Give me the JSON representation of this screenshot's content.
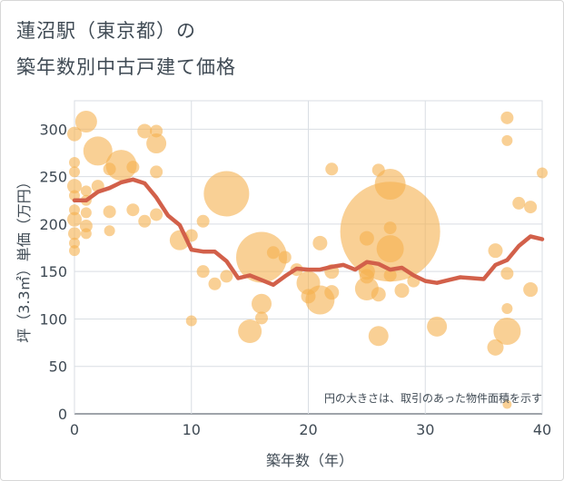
{
  "title_line1": "蓮沼駅（東京都）の",
  "title_line2": "築年数別中古戸建て価格",
  "chart_data": {
    "type": "scatter",
    "title": "蓮沼駅（東京都）の築年数別中古戸建て価格",
    "xlabel": "築年数（年）",
    "ylabel": "坪（3.3㎡）単価（万円）",
    "xlim": [
      0,
      40
    ],
    "ylim": [
      0,
      330
    ],
    "xticks": [
      0,
      10,
      20,
      30,
      40
    ],
    "yticks": [
      0,
      50,
      100,
      150,
      200,
      250,
      300
    ],
    "grid": true,
    "annotation": "円の大きさは、取引のあった物件面積を示す",
    "bubble_color": "#f5b04f",
    "line_color": "#d2604a",
    "bubbles": [
      {
        "x": 0,
        "y": 295,
        "r": 8
      },
      {
        "x": 0,
        "y": 265,
        "r": 6
      },
      {
        "x": 0,
        "y": 255,
        "r": 6
      },
      {
        "x": 0,
        "y": 240,
        "r": 8
      },
      {
        "x": 0,
        "y": 230,
        "r": 6
      },
      {
        "x": 0,
        "y": 215,
        "r": 6
      },
      {
        "x": 0,
        "y": 205,
        "r": 8
      },
      {
        "x": 0,
        "y": 190,
        "r": 7
      },
      {
        "x": 0,
        "y": 180,
        "r": 6
      },
      {
        "x": 0,
        "y": 172,
        "r": 6
      },
      {
        "x": 1,
        "y": 308,
        "r": 12
      },
      {
        "x": 1,
        "y": 235,
        "r": 6
      },
      {
        "x": 1,
        "y": 225,
        "r": 6
      },
      {
        "x": 1,
        "y": 212,
        "r": 6
      },
      {
        "x": 1,
        "y": 198,
        "r": 7
      },
      {
        "x": 1,
        "y": 190,
        "r": 6
      },
      {
        "x": 2,
        "y": 277,
        "r": 16
      },
      {
        "x": 2,
        "y": 240,
        "r": 7
      },
      {
        "x": 3,
        "y": 258,
        "r": 7
      },
      {
        "x": 3,
        "y": 213,
        "r": 7
      },
      {
        "x": 3,
        "y": 193,
        "r": 6
      },
      {
        "x": 4,
        "y": 262,
        "r": 17
      },
      {
        "x": 5,
        "y": 260,
        "r": 7
      },
      {
        "x": 5,
        "y": 215,
        "r": 7
      },
      {
        "x": 6,
        "y": 298,
        "r": 8
      },
      {
        "x": 6,
        "y": 203,
        "r": 7
      },
      {
        "x": 7,
        "y": 298,
        "r": 7
      },
      {
        "x": 7,
        "y": 285,
        "r": 11
      },
      {
        "x": 7,
        "y": 255,
        "r": 7
      },
      {
        "x": 7,
        "y": 210,
        "r": 7
      },
      {
        "x": 9,
        "y": 183,
        "r": 11
      },
      {
        "x": 10,
        "y": 188,
        "r": 7
      },
      {
        "x": 10,
        "y": 98,
        "r": 6
      },
      {
        "x": 11,
        "y": 203,
        "r": 7
      },
      {
        "x": 11,
        "y": 150,
        "r": 7
      },
      {
        "x": 12,
        "y": 137,
        "r": 7
      },
      {
        "x": 13,
        "y": 232,
        "r": 25
      },
      {
        "x": 13,
        "y": 145,
        "r": 7
      },
      {
        "x": 15,
        "y": 87,
        "r": 13
      },
      {
        "x": 16,
        "y": 165,
        "r": 28
      },
      {
        "x": 16,
        "y": 116,
        "r": 11
      },
      {
        "x": 16,
        "y": 101,
        "r": 7
      },
      {
        "x": 17,
        "y": 170,
        "r": 7
      },
      {
        "x": 18,
        "y": 165,
        "r": 7
      },
      {
        "x": 19,
        "y": 152,
        "r": 7
      },
      {
        "x": 20,
        "y": 138,
        "r": 13
      },
      {
        "x": 20,
        "y": 124,
        "r": 8
      },
      {
        "x": 21,
        "y": 180,
        "r": 8
      },
      {
        "x": 21,
        "y": 120,
        "r": 16
      },
      {
        "x": 22,
        "y": 258,
        "r": 7
      },
      {
        "x": 22,
        "y": 150,
        "r": 8
      },
      {
        "x": 22,
        "y": 128,
        "r": 8
      },
      {
        "x": 25,
        "y": 185,
        "r": 8
      },
      {
        "x": 25,
        "y": 150,
        "r": 9
      },
      {
        "x": 25,
        "y": 145,
        "r": 8
      },
      {
        "x": 25,
        "y": 132,
        "r": 13
      },
      {
        "x": 26,
        "y": 257,
        "r": 7
      },
      {
        "x": 26,
        "y": 126,
        "r": 8
      },
      {
        "x": 26,
        "y": 82,
        "r": 11
      },
      {
        "x": 27,
        "y": 242,
        "r": 17
      },
      {
        "x": 27,
        "y": 196,
        "r": 7
      },
      {
        "x": 27,
        "y": 192,
        "r": 55
      },
      {
        "x": 27,
        "y": 174,
        "r": 15
      },
      {
        "x": 27,
        "y": 146,
        "r": 7
      },
      {
        "x": 28,
        "y": 130,
        "r": 8
      },
      {
        "x": 29,
        "y": 140,
        "r": 7
      },
      {
        "x": 31,
        "y": 92,
        "r": 11
      },
      {
        "x": 36,
        "y": 172,
        "r": 8
      },
      {
        "x": 37,
        "y": 111,
        "r": 6
      },
      {
        "x": 36,
        "y": 70,
        "r": 9
      },
      {
        "x": 37,
        "y": 312,
        "r": 7
      },
      {
        "x": 37,
        "y": 288,
        "r": 6
      },
      {
        "x": 37,
        "y": 148,
        "r": 7
      },
      {
        "x": 37,
        "y": 87,
        "r": 15
      },
      {
        "x": 37,
        "y": 10,
        "r": 5
      },
      {
        "x": 38,
        "y": 222,
        "r": 7
      },
      {
        "x": 39,
        "y": 218,
        "r": 7
      },
      {
        "x": 39,
        "y": 131,
        "r": 8
      },
      {
        "x": 40,
        "y": 254,
        "r": 6
      }
    ],
    "trend": {
      "x": [
        0,
        1,
        2,
        3,
        4,
        5,
        6,
        7,
        8,
        9,
        10,
        11,
        12,
        13,
        14,
        15,
        16,
        17,
        18,
        19,
        20,
        21,
        22,
        23,
        24,
        25,
        26,
        27,
        28,
        29,
        30,
        31,
        32,
        33,
        34,
        35,
        36,
        37,
        38,
        39,
        40
      ],
      "y": [
        225,
        225,
        234,
        238,
        244,
        247,
        243,
        228,
        209,
        199,
        173,
        171,
        171,
        161,
        143,
        146,
        141,
        136,
        145,
        153,
        152,
        152,
        155,
        157,
        152,
        160,
        158,
        152,
        154,
        146,
        140,
        138,
        141,
        144,
        143,
        142,
        157,
        162,
        177,
        187,
        184
      ]
    }
  }
}
